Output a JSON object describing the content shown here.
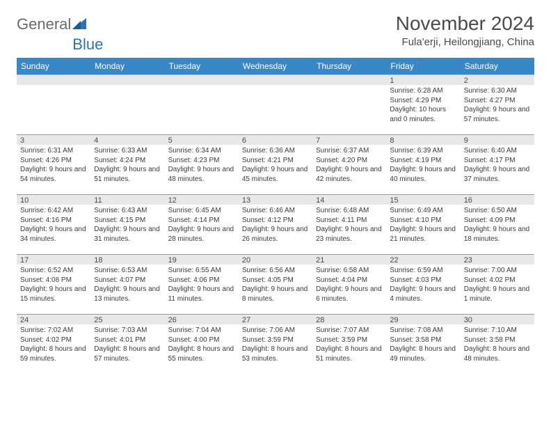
{
  "brand": {
    "part1": "General",
    "part2": "Blue"
  },
  "header": {
    "title": "November 2024",
    "location": "Fula'erji, Heilongjiang, China"
  },
  "colors": {
    "header_bg": "#3a87c8",
    "header_text": "#ffffff",
    "day_head_bg": "#e8e8e8",
    "row_border": "#999999",
    "brand_blue": "#2b72b8"
  },
  "weekdays": [
    "Sunday",
    "Monday",
    "Tuesday",
    "Wednesday",
    "Thursday",
    "Friday",
    "Saturday"
  ],
  "weeks": [
    [
      {
        "n": "",
        "sr": "",
        "ss": "",
        "dl": ""
      },
      {
        "n": "",
        "sr": "",
        "ss": "",
        "dl": ""
      },
      {
        "n": "",
        "sr": "",
        "ss": "",
        "dl": ""
      },
      {
        "n": "",
        "sr": "",
        "ss": "",
        "dl": ""
      },
      {
        "n": "",
        "sr": "",
        "ss": "",
        "dl": ""
      },
      {
        "n": "1",
        "sr": "Sunrise: 6:28 AM",
        "ss": "Sunset: 4:29 PM",
        "dl": "Daylight: 10 hours and 0 minutes."
      },
      {
        "n": "2",
        "sr": "Sunrise: 6:30 AM",
        "ss": "Sunset: 4:27 PM",
        "dl": "Daylight: 9 hours and 57 minutes."
      }
    ],
    [
      {
        "n": "3",
        "sr": "Sunrise: 6:31 AM",
        "ss": "Sunset: 4:26 PM",
        "dl": "Daylight: 9 hours and 54 minutes."
      },
      {
        "n": "4",
        "sr": "Sunrise: 6:33 AM",
        "ss": "Sunset: 4:24 PM",
        "dl": "Daylight: 9 hours and 51 minutes."
      },
      {
        "n": "5",
        "sr": "Sunrise: 6:34 AM",
        "ss": "Sunset: 4:23 PM",
        "dl": "Daylight: 9 hours and 48 minutes."
      },
      {
        "n": "6",
        "sr": "Sunrise: 6:36 AM",
        "ss": "Sunset: 4:21 PM",
        "dl": "Daylight: 9 hours and 45 minutes."
      },
      {
        "n": "7",
        "sr": "Sunrise: 6:37 AM",
        "ss": "Sunset: 4:20 PM",
        "dl": "Daylight: 9 hours and 42 minutes."
      },
      {
        "n": "8",
        "sr": "Sunrise: 6:39 AM",
        "ss": "Sunset: 4:19 PM",
        "dl": "Daylight: 9 hours and 40 minutes."
      },
      {
        "n": "9",
        "sr": "Sunrise: 6:40 AM",
        "ss": "Sunset: 4:17 PM",
        "dl": "Daylight: 9 hours and 37 minutes."
      }
    ],
    [
      {
        "n": "10",
        "sr": "Sunrise: 6:42 AM",
        "ss": "Sunset: 4:16 PM",
        "dl": "Daylight: 9 hours and 34 minutes."
      },
      {
        "n": "11",
        "sr": "Sunrise: 6:43 AM",
        "ss": "Sunset: 4:15 PM",
        "dl": "Daylight: 9 hours and 31 minutes."
      },
      {
        "n": "12",
        "sr": "Sunrise: 6:45 AM",
        "ss": "Sunset: 4:14 PM",
        "dl": "Daylight: 9 hours and 28 minutes."
      },
      {
        "n": "13",
        "sr": "Sunrise: 6:46 AM",
        "ss": "Sunset: 4:12 PM",
        "dl": "Daylight: 9 hours and 26 minutes."
      },
      {
        "n": "14",
        "sr": "Sunrise: 6:48 AM",
        "ss": "Sunset: 4:11 PM",
        "dl": "Daylight: 9 hours and 23 minutes."
      },
      {
        "n": "15",
        "sr": "Sunrise: 6:49 AM",
        "ss": "Sunset: 4:10 PM",
        "dl": "Daylight: 9 hours and 21 minutes."
      },
      {
        "n": "16",
        "sr": "Sunrise: 6:50 AM",
        "ss": "Sunset: 4:09 PM",
        "dl": "Daylight: 9 hours and 18 minutes."
      }
    ],
    [
      {
        "n": "17",
        "sr": "Sunrise: 6:52 AM",
        "ss": "Sunset: 4:08 PM",
        "dl": "Daylight: 9 hours and 15 minutes."
      },
      {
        "n": "18",
        "sr": "Sunrise: 6:53 AM",
        "ss": "Sunset: 4:07 PM",
        "dl": "Daylight: 9 hours and 13 minutes."
      },
      {
        "n": "19",
        "sr": "Sunrise: 6:55 AM",
        "ss": "Sunset: 4:06 PM",
        "dl": "Daylight: 9 hours and 11 minutes."
      },
      {
        "n": "20",
        "sr": "Sunrise: 6:56 AM",
        "ss": "Sunset: 4:05 PM",
        "dl": "Daylight: 9 hours and 8 minutes."
      },
      {
        "n": "21",
        "sr": "Sunrise: 6:58 AM",
        "ss": "Sunset: 4:04 PM",
        "dl": "Daylight: 9 hours and 6 minutes."
      },
      {
        "n": "22",
        "sr": "Sunrise: 6:59 AM",
        "ss": "Sunset: 4:03 PM",
        "dl": "Daylight: 9 hours and 4 minutes."
      },
      {
        "n": "23",
        "sr": "Sunrise: 7:00 AM",
        "ss": "Sunset: 4:02 PM",
        "dl": "Daylight: 9 hours and 1 minute."
      }
    ],
    [
      {
        "n": "24",
        "sr": "Sunrise: 7:02 AM",
        "ss": "Sunset: 4:02 PM",
        "dl": "Daylight: 8 hours and 59 minutes."
      },
      {
        "n": "25",
        "sr": "Sunrise: 7:03 AM",
        "ss": "Sunset: 4:01 PM",
        "dl": "Daylight: 8 hours and 57 minutes."
      },
      {
        "n": "26",
        "sr": "Sunrise: 7:04 AM",
        "ss": "Sunset: 4:00 PM",
        "dl": "Daylight: 8 hours and 55 minutes."
      },
      {
        "n": "27",
        "sr": "Sunrise: 7:06 AM",
        "ss": "Sunset: 3:59 PM",
        "dl": "Daylight: 8 hours and 53 minutes."
      },
      {
        "n": "28",
        "sr": "Sunrise: 7:07 AM",
        "ss": "Sunset: 3:59 PM",
        "dl": "Daylight: 8 hours and 51 minutes."
      },
      {
        "n": "29",
        "sr": "Sunrise: 7:08 AM",
        "ss": "Sunset: 3:58 PM",
        "dl": "Daylight: 8 hours and 49 minutes."
      },
      {
        "n": "30",
        "sr": "Sunrise: 7:10 AM",
        "ss": "Sunset: 3:58 PM",
        "dl": "Daylight: 8 hours and 48 minutes."
      }
    ]
  ]
}
